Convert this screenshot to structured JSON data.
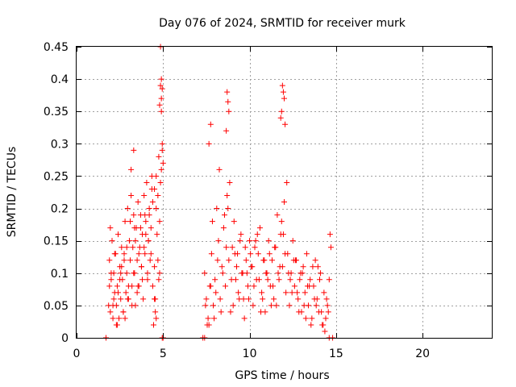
{
  "chart_data": {
    "type": "scatter",
    "title": "Day 076 of 2024, SRMTID for receiver murk",
    "xlabel": "GPS time / hours",
    "ylabel": "SRMTID / TECUs",
    "xlim": [
      0,
      24
    ],
    "ylim": [
      0,
      0.45
    ],
    "xticks": [
      0,
      5,
      10,
      15,
      20
    ],
    "yticks": [
      0,
      0.05,
      0.1,
      0.15,
      0.2,
      0.25,
      0.3,
      0.35,
      0.4,
      0.45
    ],
    "ytick_labels": [
      "0",
      "0.05",
      "0.1",
      "0.15",
      "0.2",
      "0.25",
      "0.3",
      "0.35",
      "0.4",
      "0.45"
    ],
    "grid": true,
    "marker": "+",
    "color": "#ff0000",
    "series": [
      {
        "x": [
          1.85,
          1.9,
          1.95,
          2.0,
          2.05,
          2.1,
          2.15,
          2.2,
          2.25,
          2.3,
          2.35,
          2.4,
          2.45,
          2.5,
          2.55,
          2.6,
          2.65,
          2.7,
          2.75,
          2.8,
          2.85,
          2.9,
          2.95,
          3.0,
          3.05,
          3.1,
          3.15,
          3.2,
          3.25,
          3.3,
          3.35,
          3.4,
          3.45,
          3.5,
          3.55,
          3.6,
          3.65,
          3.7,
          3.75,
          3.8,
          3.85,
          3.9,
          3.95,
          4.0,
          4.05,
          4.1,
          4.15,
          4.2,
          4.25,
          4.3,
          4.35,
          4.4,
          4.45,
          4.5,
          4.55,
          4.6,
          4.65,
          4.7,
          4.75,
          4.8,
          4.85,
          4.9,
          4.95,
          5.0,
          1.9,
          2.0,
          2.1,
          2.2,
          2.3,
          2.4,
          2.5,
          2.6,
          2.7,
          2.8,
          2.9,
          3.0,
          3.1,
          3.2,
          3.3,
          3.4,
          3.5,
          3.6,
          3.7,
          3.8,
          3.9,
          4.0,
          4.1,
          4.2,
          4.3,
          4.4,
          4.5,
          4.6,
          4.7,
          4.8,
          4.9,
          1.95,
          2.15,
          2.35,
          2.55,
          2.75,
          2.95,
          3.15,
          3.35,
          3.55,
          3.75,
          3.95,
          4.15,
          4.35,
          4.55,
          4.75,
          4.95,
          7.4,
          7.5,
          7.6,
          7.7,
          7.8,
          7.9,
          8.0,
          8.1,
          8.2,
          8.3,
          8.4,
          8.5,
          8.6,
          8.7,
          8.8,
          8.9,
          9.0,
          9.1,
          9.2,
          9.3,
          9.4,
          9.5,
          9.6,
          9.7,
          9.8,
          9.9,
          10.0,
          10.1,
          10.2,
          10.3,
          10.4,
          10.5,
          10.6,
          10.7,
          10.8,
          10.9,
          11.0,
          11.1,
          11.2,
          11.3,
          11.4,
          11.5,
          11.6,
          11.7,
          11.8,
          11.9,
          12.0,
          12.1,
          12.2,
          12.3,
          12.4,
          12.5,
          12.6,
          12.7,
          12.8,
          12.9,
          13.0,
          13.1,
          13.2,
          13.3,
          13.4,
          13.5,
          13.6,
          13.7,
          13.8,
          13.9,
          14.0,
          14.1,
          14.2,
          14.3,
          14.4,
          14.5,
          14.6,
          14.7,
          7.45,
          7.65,
          7.85,
          8.05,
          8.25,
          8.45,
          8.65,
          8.85,
          9.05,
          9.25,
          9.45,
          9.65,
          9.85,
          10.05,
          10.25,
          10.45,
          10.65,
          10.85,
          11.05,
          11.25,
          11.45,
          11.65,
          11.85,
          12.05,
          12.25,
          12.45,
          12.65,
          12.85,
          13.05,
          13.25,
          13.45,
          13.65,
          13.85,
          14.05,
          14.25,
          14.45,
          14.65,
          7.55,
          7.75,
          7.95,
          8.15,
          8.35,
          8.55,
          8.75,
          8.95,
          9.15,
          9.35,
          9.55,
          9.75,
          9.95,
          10.15,
          10.35,
          10.55,
          10.75,
          10.95,
          11.15,
          11.35,
          11.55,
          11.75,
          11.95,
          12.15,
          12.35,
          12.55,
          12.75,
          12.95,
          13.15,
          13.35,
          13.55,
          13.75,
          13.95,
          14.15,
          14.35,
          14.55,
          4.85,
          4.9,
          4.95,
          4.9,
          4.85,
          4.8,
          7.65,
          7.75,
          8.7,
          8.75,
          8.8,
          8.65,
          11.9,
          11.95,
          12.0,
          11.85,
          11.8,
          12.05,
          3.3,
          4.5,
          4.6,
          1.7,
          4.95,
          5.0,
          7.3,
          7.4,
          14.6,
          14.8
        ],
        "y": [
          0.05,
          0.12,
          0.04,
          0.09,
          0.15,
          0.03,
          0.1,
          0.07,
          0.13,
          0.05,
          0.08,
          0.16,
          0.03,
          0.11,
          0.06,
          0.14,
          0.09,
          0.04,
          0.12,
          0.18,
          0.07,
          0.1,
          0.2,
          0.06,
          0.15,
          0.12,
          0.22,
          0.08,
          0.14,
          0.19,
          0.1,
          0.05,
          0.17,
          0.12,
          0.21,
          0.08,
          0.14,
          0.19,
          0.11,
          0.16,
          0.06,
          0.22,
          0.13,
          0.18,
          0.24,
          0.09,
          0.15,
          0.2,
          0.12,
          0.17,
          0.25,
          0.08,
          0.02,
          0.11,
          0.06,
          0.2,
          0.16,
          0.22,
          0.28,
          0.1,
          0.24,
          0.35,
          0.3,
          0.27,
          0.08,
          0.1,
          0.05,
          0.13,
          0.02,
          0.07,
          0.09,
          0.11,
          0.04,
          0.03,
          0.14,
          0.08,
          0.18,
          0.05,
          0.1,
          0.15,
          0.07,
          0.13,
          0.17,
          0.09,
          0.14,
          0.16,
          0.1,
          0.19,
          0.13,
          0.21,
          0.06,
          0.03,
          0.12,
          0.18,
          0.26,
          0.17,
          0.06,
          0.02,
          0.1,
          0.13,
          0.06,
          0.26,
          0.17,
          0.08,
          0.11,
          0.19,
          0.15,
          0.23,
          0.04,
          0.09,
          0.29,
          0.1,
          0.06,
          0.03,
          0.08,
          0.13,
          0.05,
          0.09,
          0.2,
          0.15,
          0.06,
          0.11,
          0.17,
          0.08,
          0.22,
          0.12,
          0.04,
          0.14,
          0.18,
          0.09,
          0.13,
          0.06,
          0.16,
          0.1,
          0.03,
          0.12,
          0.08,
          0.15,
          0.11,
          0.05,
          0.14,
          0.09,
          0.13,
          0.17,
          0.07,
          0.12,
          0.04,
          0.1,
          0.15,
          0.08,
          0.12,
          0.06,
          0.14,
          0.19,
          0.09,
          0.16,
          0.11,
          0.21,
          0.07,
          0.13,
          0.05,
          0.1,
          0.15,
          0.08,
          0.12,
          0.06,
          0.09,
          0.04,
          0.11,
          0.07,
          0.13,
          0.05,
          0.09,
          0.03,
          0.08,
          0.12,
          0.06,
          0.04,
          0.1,
          0.02,
          0.07,
          0.03,
          0.05,
          0.09,
          0.14,
          0.05,
          0.02,
          0.18,
          0.07,
          0.26,
          0.1,
          0.14,
          0.24,
          0.05,
          0.11,
          0.15,
          0.06,
          0.1,
          0.13,
          0.08,
          0.16,
          0.04,
          0.12,
          0.09,
          0.05,
          0.14,
          0.1,
          0.18,
          0.13,
          0.1,
          0.07,
          0.12,
          0.04,
          0.1,
          0.03,
          0.08,
          0.11,
          0.05,
          0.09,
          0.02,
          0.06,
          0.16,
          0.02,
          0.08,
          0.03,
          0.12,
          0.04,
          0.19,
          0.2,
          0.09,
          0.13,
          0.07,
          0.1,
          0.14,
          0.06,
          0.11,
          0.15,
          0.09,
          0.06,
          0.1,
          0.13,
          0.08,
          0.05,
          0.11,
          0.16,
          0.24,
          0.09,
          0.12,
          0.07,
          0.1,
          0.05,
          0.08,
          0.02,
          0.06,
          0.11,
          0.04,
          0.01,
          0.04,
          0.45,
          0.4,
          0.385,
          0.37,
          0.39,
          0.36,
          0.3,
          0.33,
          0.38,
          0.365,
          0.35,
          0.32,
          0.39,
          0.38,
          0.37,
          0.35,
          0.34,
          0.33,
          0.29,
          0.23,
          0.25,
          0.0,
          0.0,
          0.0,
          0.0,
          0.0,
          0.0,
          0.0
        ]
      }
    ]
  }
}
